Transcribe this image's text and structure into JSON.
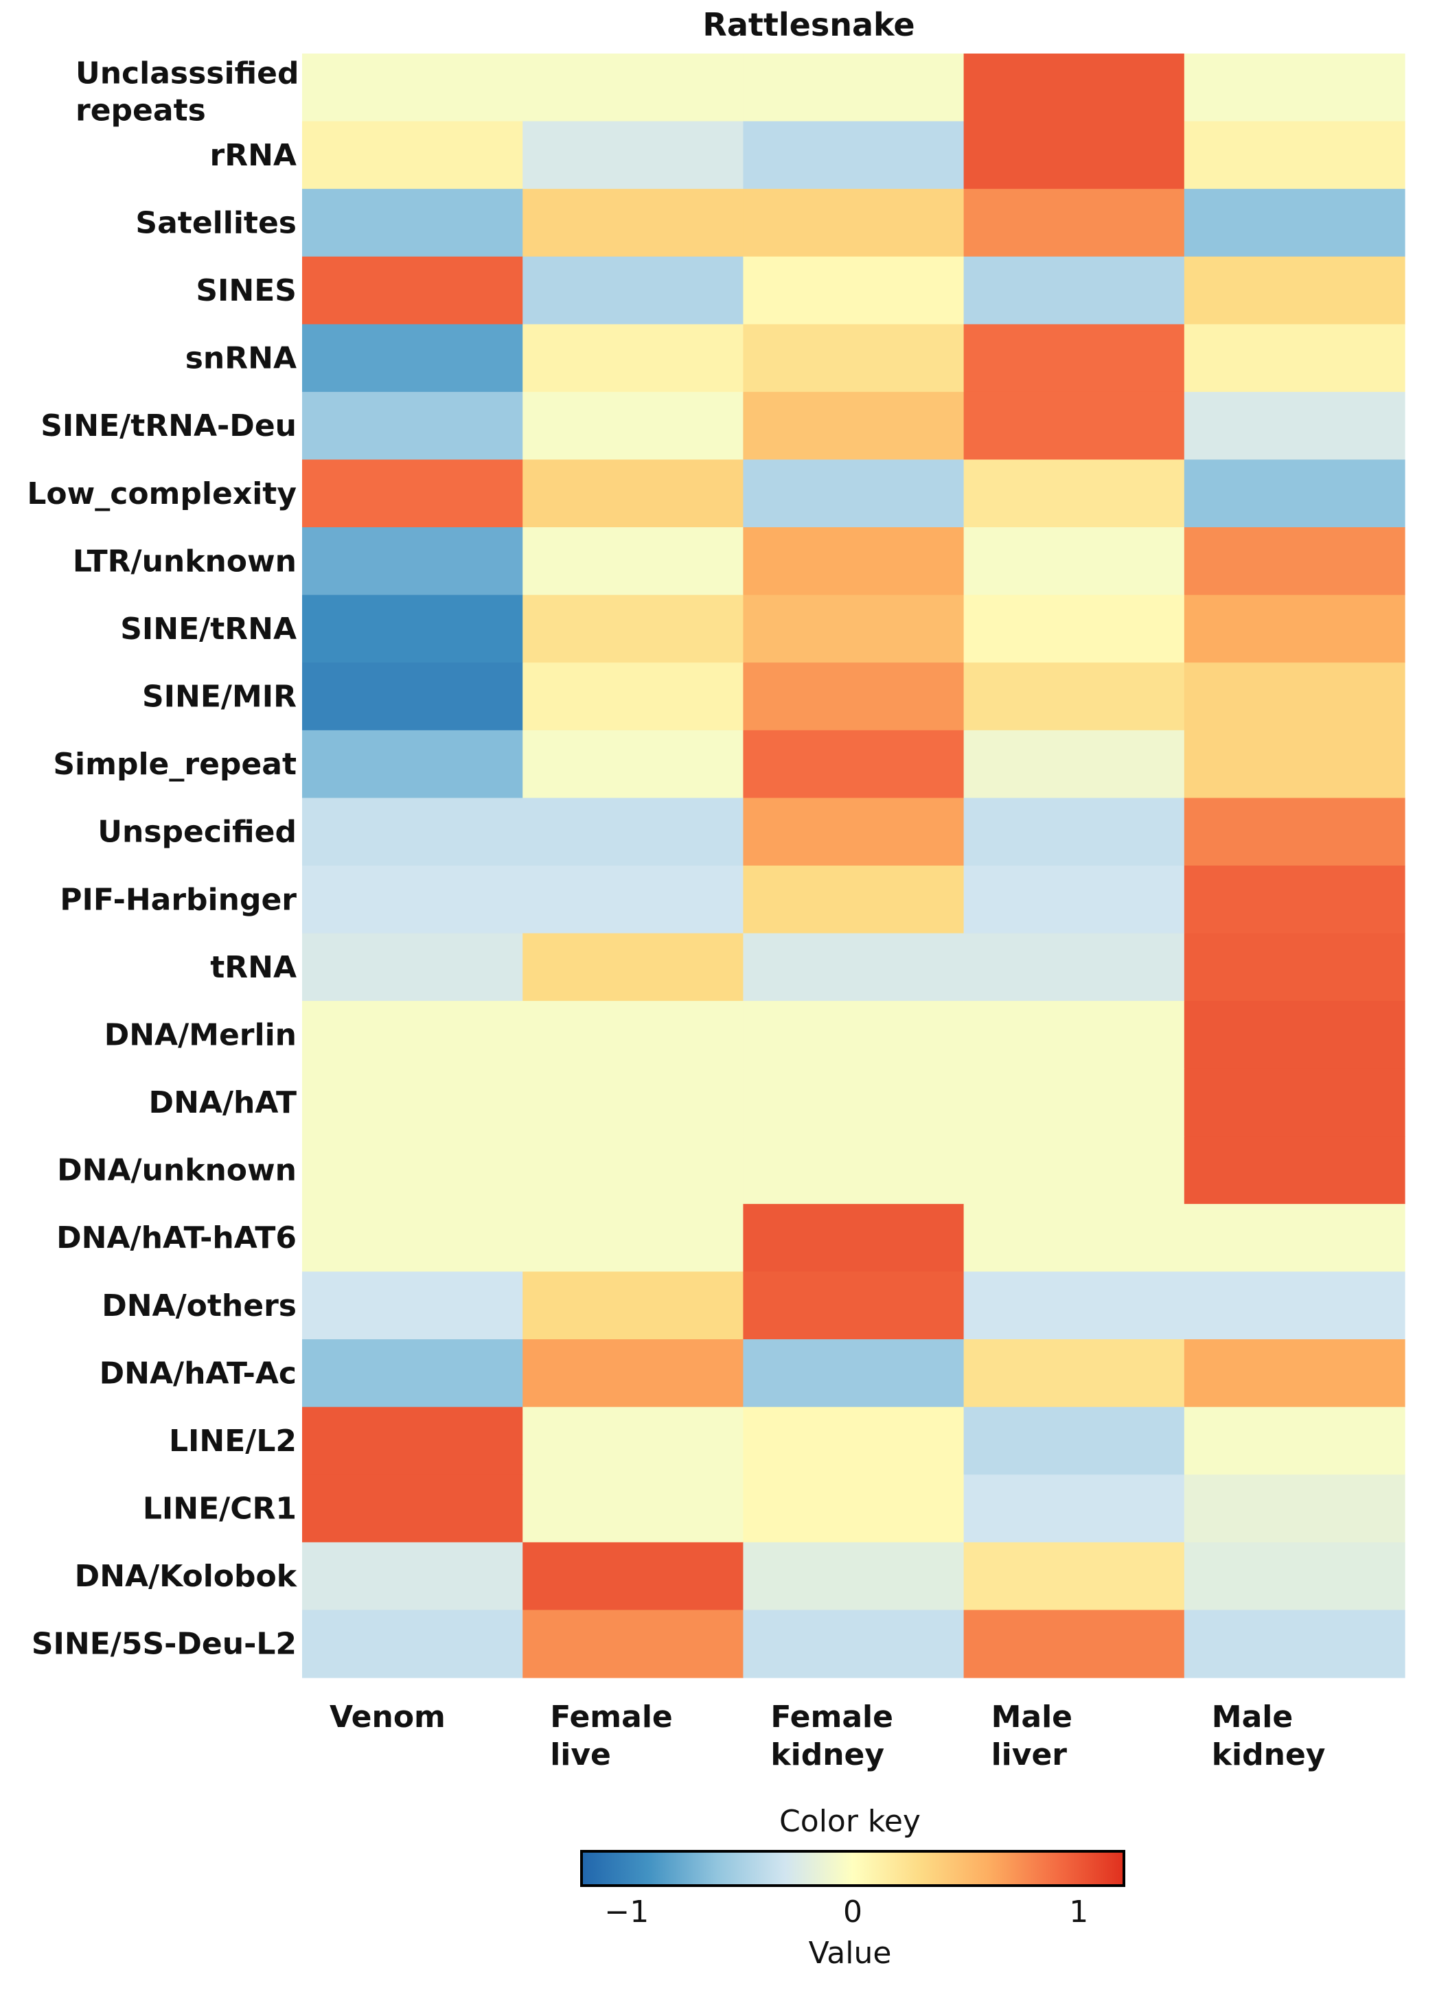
{
  "chart_data": {
    "type": "heatmap",
    "title": "Rattlesnake",
    "rows": [
      "Unclasssified repeats",
      "rRNA",
      "Satellites",
      "SINES",
      "snRNA",
      "SINE/tRNA-Deu",
      "Low_complexity",
      "LTR/unknown",
      "SINE/tRNA",
      "SINE/MIR",
      "Simple_repeat",
      "Unspecified",
      "PIF-Harbinger",
      "tRNA",
      "DNA/Merlin",
      "DNA/hAT",
      "DNA/unknown",
      "DNA/hAT-hAT6",
      "DNA/others",
      "DNA/hAT-Ac",
      "LINE/L2",
      "LINE/CR1",
      "DNA/Kolobok",
      "SINE/5S-Deu-L2"
    ],
    "columns": [
      "Venom",
      "Female live",
      "Female kidney",
      "Male liver",
      "Male kidney"
    ],
    "values": [
      [
        -0.05,
        -0.05,
        -0.05,
        1.0,
        -0.05
      ],
      [
        0.1,
        -0.25,
        -0.4,
        1.0,
        0.1
      ],
      [
        -0.6,
        0.35,
        0.35,
        0.75,
        -0.6
      ],
      [
        0.95,
        -0.45,
        0.05,
        -0.45,
        0.3
      ],
      [
        -0.8,
        0.1,
        0.25,
        0.9,
        0.1
      ],
      [
        -0.55,
        -0.05,
        0.45,
        0.9,
        -0.25
      ],
      [
        0.9,
        0.35,
        -0.45,
        0.2,
        -0.6
      ],
      [
        -0.75,
        -0.05,
        0.6,
        -0.05,
        0.75
      ],
      [
        -0.95,
        0.25,
        0.5,
        0.05,
        0.6
      ],
      [
        -1.0,
        0.1,
        0.7,
        0.25,
        0.35
      ],
      [
        -0.65,
        -0.05,
        0.9,
        -0.1,
        0.35
      ],
      [
        -0.35,
        -0.35,
        0.65,
        -0.35,
        0.8
      ],
      [
        -0.3,
        -0.3,
        0.3,
        -0.3,
        0.95
      ],
      [
        -0.25,
        0.3,
        -0.25,
        -0.25,
        0.97
      ],
      [
        -0.05,
        -0.05,
        -0.05,
        -0.05,
        1.0
      ],
      [
        -0.05,
        -0.05,
        -0.05,
        -0.05,
        1.0
      ],
      [
        -0.05,
        -0.05,
        -0.05,
        -0.05,
        1.0
      ],
      [
        -0.05,
        -0.05,
        1.0,
        -0.05,
        -0.05
      ],
      [
        -0.3,
        0.3,
        0.97,
        -0.3,
        -0.3
      ],
      [
        -0.6,
        0.65,
        -0.55,
        0.25,
        0.6
      ],
      [
        1.0,
        -0.05,
        0.05,
        -0.4,
        -0.05
      ],
      [
        1.0,
        -0.05,
        0.05,
        -0.3,
        -0.15
      ],
      [
        -0.25,
        1.0,
        -0.2,
        0.2,
        -0.2
      ],
      [
        -0.35,
        0.75,
        -0.35,
        0.8,
        -0.35
      ]
    ],
    "color_key": {
      "title": "Color key",
      "xlabel": "Value",
      "ticks": [
        "−1",
        "0",
        "1"
      ],
      "tick_values": [
        -1,
        0,
        1
      ],
      "range": [
        -1.2,
        1.2
      ],
      "colors": [
        "#2166ac",
        "#4393c3",
        "#92c5de",
        "#d1e5f0",
        "#ffffbf",
        "#fddb85",
        "#fdae61",
        "#f46d43",
        "#e0301e"
      ]
    }
  }
}
